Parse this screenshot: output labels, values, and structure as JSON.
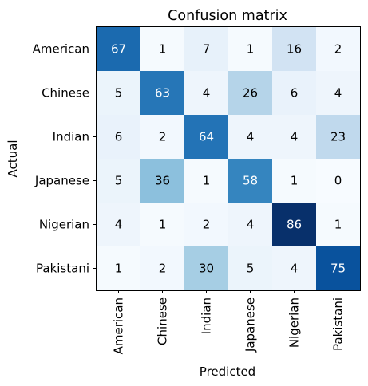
{
  "chart_data": {
    "type": "heatmap",
    "title": "Confusion matrix",
    "xlabel": "Predicted",
    "ylabel": "Actual",
    "x_categories": [
      "American",
      "Chinese",
      "Indian",
      "Japanese",
      "Nigerian",
      "Pakistani"
    ],
    "y_categories": [
      "American",
      "Chinese",
      "Indian",
      "Japanese",
      "Nigerian",
      "Pakistani"
    ],
    "values": [
      [
        67,
        1,
        7,
        1,
        16,
        2
      ],
      [
        5,
        63,
        4,
        26,
        6,
        4
      ],
      [
        6,
        2,
        64,
        4,
        4,
        23
      ],
      [
        5,
        36,
        1,
        58,
        1,
        0
      ],
      [
        4,
        1,
        2,
        4,
        86,
        1
      ],
      [
        1,
        2,
        30,
        5,
        4,
        75
      ]
    ],
    "value_range": [
      0,
      86
    ],
    "colormap": "Blues",
    "grid": false,
    "legend": "none"
  }
}
